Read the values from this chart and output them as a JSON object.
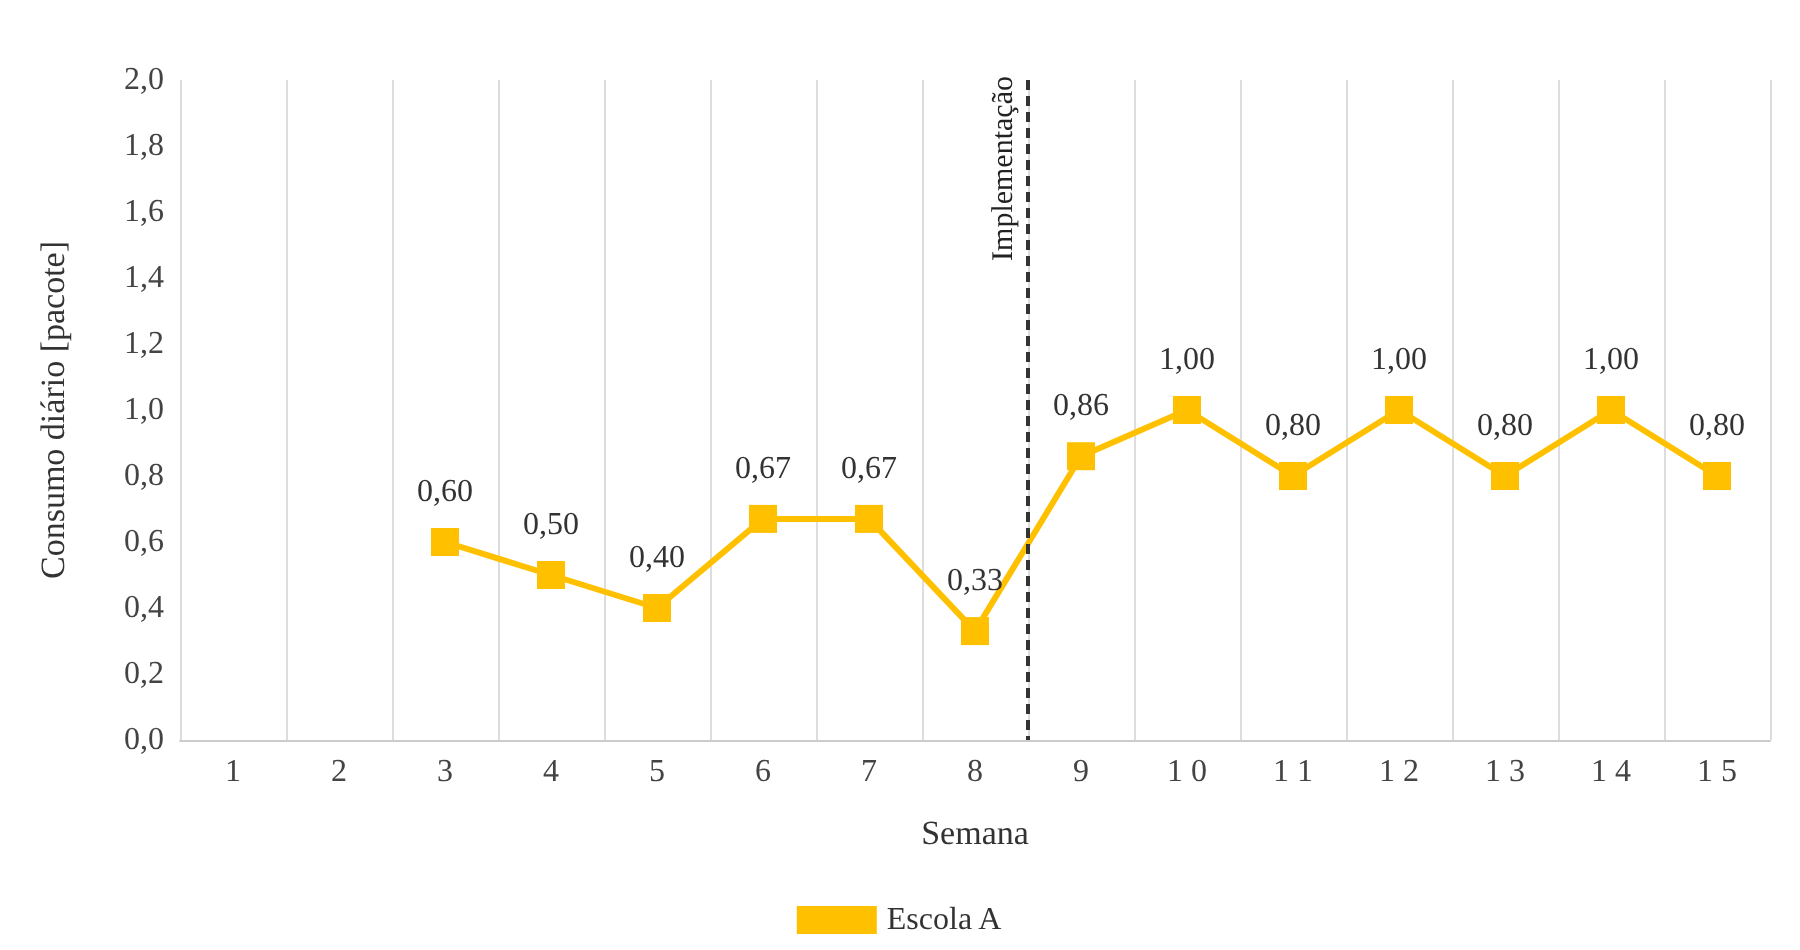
{
  "chart_data": {
    "type": "line",
    "xlabel": "Semana",
    "ylabel": "Consumo diário [pacote]",
    "categories": [
      "1",
      "2",
      "3",
      "4",
      "5",
      "6",
      "7",
      "8",
      "9",
      "1 0",
      "1 1",
      "1 2",
      "1 3",
      "1 4",
      "1 5"
    ],
    "series": [
      {
        "name": "Escola A",
        "color": "#ffc000",
        "values": [
          null,
          null,
          0.6,
          0.5,
          0.4,
          0.67,
          0.67,
          0.33,
          0.86,
          1.0,
          0.8,
          1.0,
          0.8,
          1.0,
          0.8
        ],
        "value_labels": [
          null,
          null,
          "0,60",
          "0,50",
          "0,40",
          "0,67",
          "0,67",
          "0,33",
          "0,86",
          "1,00",
          "0,80",
          "1,00",
          "0,80",
          "1,00",
          "0,80"
        ]
      }
    ],
    "ylim": [
      0,
      2
    ],
    "yticks": [
      {
        "value": 0,
        "label": "0,0"
      },
      {
        "value": 0.2,
        "label": "0,2"
      },
      {
        "value": 0.4,
        "label": "0,4"
      },
      {
        "value": 0.6,
        "label": "0,6"
      },
      {
        "value": 0.8,
        "label": "0,8"
      },
      {
        "value": 1,
        "label": "1,0"
      },
      {
        "value": 1.2,
        "label": "1,2"
      },
      {
        "value": 1.4,
        "label": "1,4"
      },
      {
        "value": 1.6,
        "label": "1,6"
      },
      {
        "value": 1.8,
        "label": "1,8"
      },
      {
        "value": 2,
        "label": "2,0"
      }
    ],
    "annotations": [
      "Implementação"
    ],
    "grid": "x",
    "legend": "bottom",
    "marker": "square",
    "line_style": "solid"
  }
}
